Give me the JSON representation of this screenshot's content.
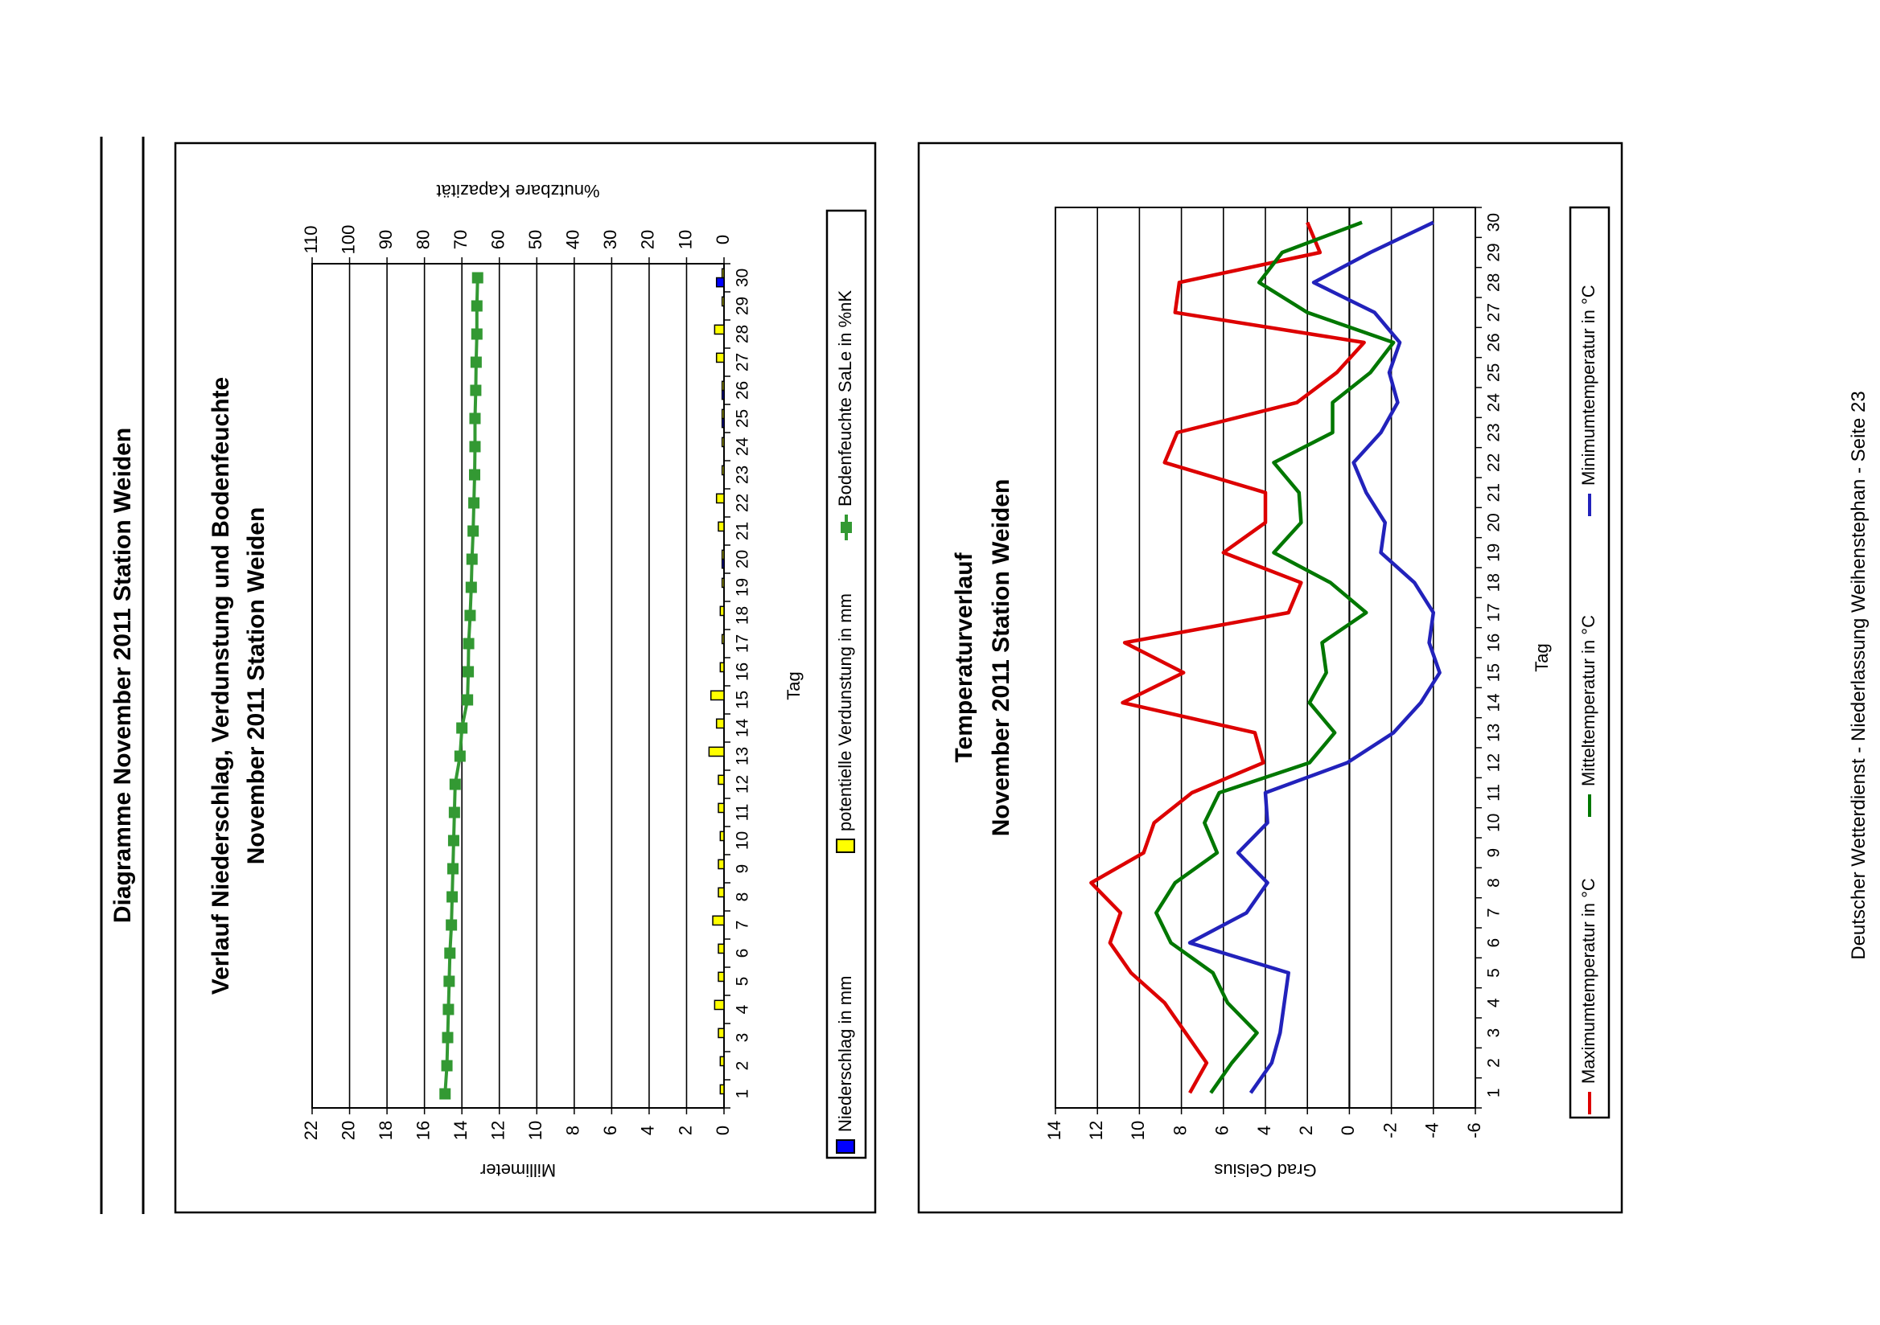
{
  "page": {
    "title": "Diagramme November 2011 Station Weiden",
    "footer": "Deutscher Wetterdienst - Niederlassung Weihenstephan - Seite 23"
  },
  "chart_data": [
    {
      "type": "bar",
      "title": "Verlauf Niederschlag, Verdunstung und Bodenfeuchte",
      "subtitle": "November 2011 Station Weiden",
      "xlabel": "Tag",
      "ylabel": "Millimeter",
      "y2label": "%nutzbare Kapazität",
      "ylim": [
        0,
        22
      ],
      "y2lim": [
        0,
        110
      ],
      "yticks": [
        0,
        2,
        4,
        6,
        8,
        10,
        12,
        14,
        16,
        18,
        20,
        22
      ],
      "y2ticks": [
        0,
        10,
        20,
        30,
        40,
        50,
        60,
        70,
        80,
        90,
        100,
        110
      ],
      "categories": [
        "1",
        "2",
        "3",
        "4",
        "5",
        "6",
        "7",
        "8",
        "9",
        "10",
        "11",
        "12",
        "13",
        "14",
        "15",
        "16",
        "17",
        "18",
        "19",
        "20",
        "21",
        "22",
        "23",
        "24",
        "25",
        "26",
        "27",
        "28",
        "29",
        "30"
      ],
      "grid": true,
      "legend_position": "bottom",
      "series": [
        {
          "name": "Niederschlag in mm",
          "type": "bar",
          "color": "#0000ff",
          "values": [
            0,
            0,
            0,
            0,
            0,
            0,
            0,
            0,
            0,
            0,
            0,
            0,
            0,
            0,
            0,
            0,
            0,
            0,
            0,
            0.1,
            0,
            0,
            0,
            0,
            0.1,
            0.1,
            0,
            0,
            0,
            0.4
          ]
        },
        {
          "name": "potentielle Verdunstung in mm",
          "type": "bar",
          "color": "#ffff00",
          "values": [
            0.2,
            0.2,
            0.3,
            0.5,
            0.3,
            0.3,
            0.6,
            0.3,
            0.3,
            0.2,
            0.3,
            0.3,
            0.8,
            0.4,
            0.7,
            0.2,
            0.1,
            0.2,
            0.1,
            0.1,
            0.3,
            0.4,
            0.1,
            0.1,
            0.1,
            0.1,
            0.4,
            0.5,
            0.1,
            0.1
          ]
        },
        {
          "name": "Bodenfeuchte SaLe in %nK",
          "type": "line",
          "axis": "y2",
          "color": "#339933",
          "values": [
            74.5,
            74,
            73.8,
            73.6,
            73.4,
            73.2,
            72.8,
            72.6,
            72.4,
            72.2,
            72,
            71.8,
            70.5,
            70,
            68.5,
            68.3,
            68.2,
            67.8,
            67.5,
            67.3,
            67,
            66.8,
            66.6,
            66.5,
            66.5,
            66.3,
            66.2,
            66,
            66,
            65.8
          ]
        }
      ]
    },
    {
      "type": "line",
      "title": "Temperaturverlauf",
      "subtitle": "November 2011 Station Weiden",
      "xlabel": "Tag",
      "ylabel": "Grad Celsius",
      "ylim": [
        -6,
        14
      ],
      "yticks": [
        -6,
        -4,
        -2,
        0,
        2,
        4,
        6,
        8,
        10,
        12,
        14
      ],
      "categories": [
        "1",
        "2",
        "3",
        "4",
        "5",
        "6",
        "7",
        "8",
        "9",
        "10",
        "11",
        "12",
        "13",
        "14",
        "15",
        "16",
        "17",
        "18",
        "19",
        "20",
        "21",
        "22",
        "23",
        "24",
        "25",
        "26",
        "27",
        "28",
        "29",
        "30"
      ],
      "grid": true,
      "legend_position": "bottom",
      "series": [
        {
          "name": "Maximumtemperatur in °C",
          "color": "#dd0000",
          "values": [
            7.6,
            6.8,
            7.8,
            8.8,
            10.4,
            11.4,
            10.9,
            12.3,
            9.8,
            9.3,
            7.5,
            4.1,
            4.5,
            10.8,
            7.9,
            10.7,
            2.9,
            2.3,
            6,
            4,
            4,
            8.8,
            8.2,
            2.5,
            0.6,
            -0.7,
            8.3,
            8.1,
            1.4,
            2
          ]
        },
        {
          "name": "Mitteltemperatur in °C",
          "color": "#007700",
          "values": [
            6.6,
            5.6,
            4.4,
            5.8,
            6.5,
            8.5,
            9.2,
            8.3,
            6.3,
            6.9,
            6.2,
            1.9,
            0.7,
            1.9,
            1.1,
            1.3,
            -0.8,
            0.9,
            3.6,
            2.3,
            2.4,
            3.6,
            0.8,
            0.8,
            -1,
            -2.1,
            2,
            4.3,
            3.2,
            -0.6
          ]
        },
        {
          "name": "Minimumtemperatur in °C",
          "color": "#2222bb",
          "values": [
            4.7,
            3.7,
            3.3,
            3.1,
            2.9,
            7.6,
            4.9,
            3.9,
            5.3,
            3.9,
            4,
            0.1,
            -2.1,
            -3.4,
            -4.3,
            -3.8,
            -4,
            -3.1,
            -1.5,
            -1.7,
            -0.8,
            -0.2,
            -1.5,
            -2.3,
            -1.9,
            -2.4,
            -1.2,
            1.7,
            -1,
            -4
          ]
        }
      ]
    }
  ]
}
